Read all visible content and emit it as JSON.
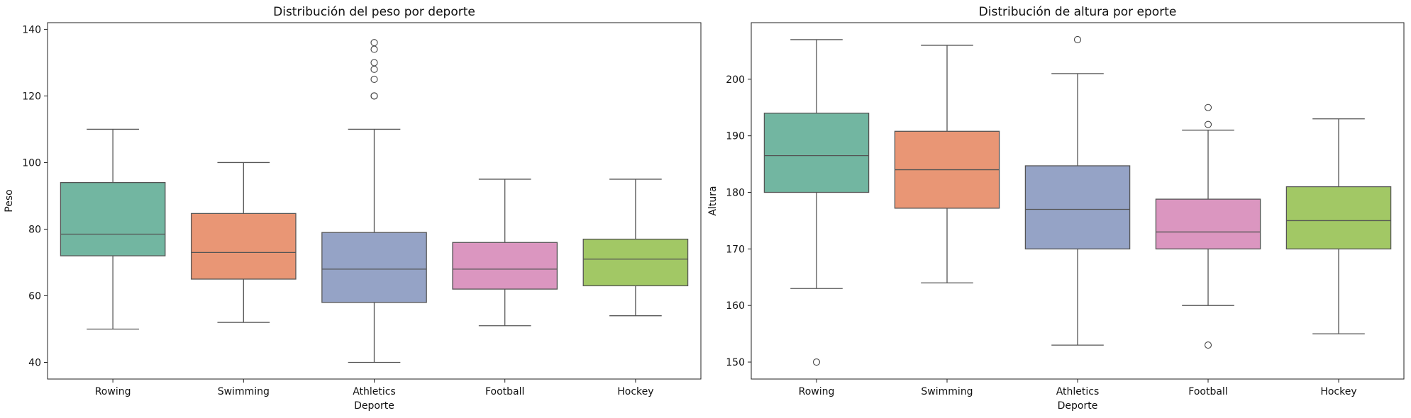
{
  "chart_data": [
    {
      "type": "box",
      "title": "Distribución del peso por deporte",
      "xlabel": "Deporte",
      "ylabel": "Peso",
      "ylim": [
        35,
        142
      ],
      "yticks": [
        40,
        60,
        80,
        100,
        120,
        140
      ],
      "categories": [
        "Rowing",
        "Swimming",
        "Athletics",
        "Football",
        "Hockey"
      ],
      "boxes": [
        {
          "min": 50,
          "q1": 72,
          "median": 78.5,
          "q3": 94,
          "max": 110,
          "outliers": []
        },
        {
          "min": 52,
          "q1": 65,
          "median": 73,
          "q3": 84.7,
          "max": 100,
          "outliers": []
        },
        {
          "min": 40,
          "q1": 58,
          "median": 68,
          "q3": 79,
          "max": 110,
          "outliers": [
            120,
            120,
            125,
            128,
            130,
            134,
            136
          ]
        },
        {
          "min": 51,
          "q1": 62,
          "median": 68,
          "q3": 76,
          "max": 95,
          "outliers": []
        },
        {
          "min": 54,
          "q1": 63,
          "median": 71,
          "q3": 77,
          "max": 95,
          "outliers": []
        }
      ]
    },
    {
      "type": "box",
      "title": "Distribución de altura por eporte",
      "xlabel": "Deporte",
      "ylabel": "Altura",
      "ylim": [
        147,
        210
      ],
      "yticks": [
        150,
        160,
        170,
        180,
        190,
        200
      ],
      "categories": [
        "Rowing",
        "Swimming",
        "Athletics",
        "Football",
        "Hockey"
      ],
      "boxes": [
        {
          "min": 163,
          "q1": 180,
          "median": 186.5,
          "q3": 194,
          "max": 207,
          "outliers": [
            150
          ]
        },
        {
          "min": 164,
          "q1": 177.2,
          "median": 184,
          "q3": 190.8,
          "max": 206,
          "outliers": []
        },
        {
          "min": 153,
          "q1": 170,
          "median": 177,
          "q3": 184.7,
          "max": 201,
          "outliers": [
            207
          ]
        },
        {
          "min": 160,
          "q1": 170,
          "median": 173,
          "q3": 178.8,
          "max": 191,
          "outliers": [
            153,
            192,
            195
          ]
        },
        {
          "min": 155,
          "q1": 170,
          "median": 175,
          "q3": 181,
          "max": 193,
          "outliers": []
        }
      ]
    }
  ],
  "colors": [
    "#72b6a1",
    "#e99675",
    "#95a3c6",
    "#db96c0",
    "#a2c865"
  ]
}
